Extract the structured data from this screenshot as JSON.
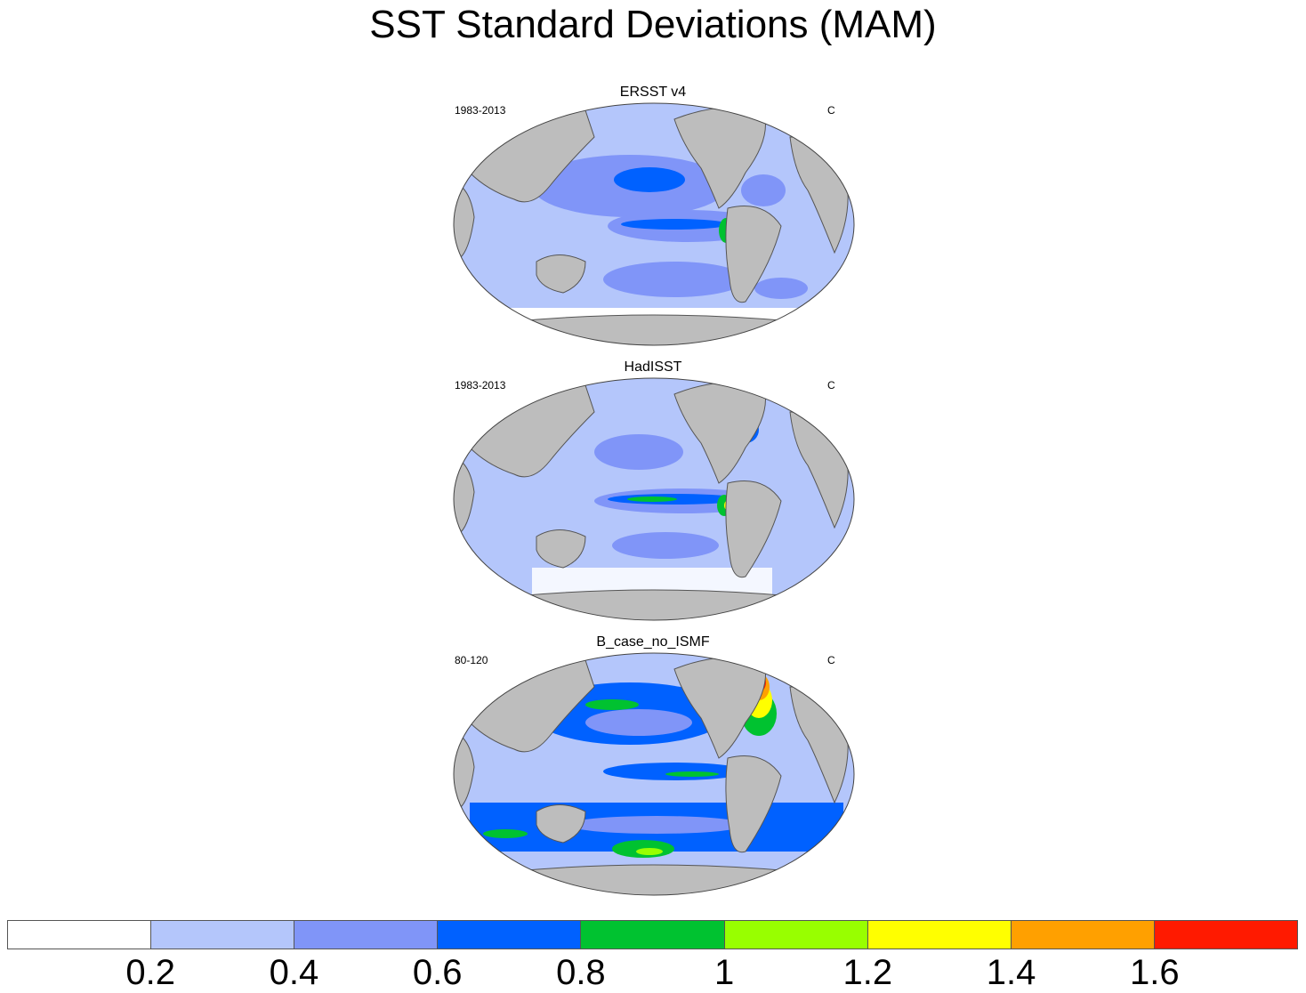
{
  "title": "SST Standard Deviations (MAM)",
  "panels": [
    {
      "name": "ERSST v4",
      "period": "1983-2013",
      "units": "C"
    },
    {
      "name": "HadISST",
      "period": "1983-2013",
      "units": "C"
    },
    {
      "name": "B_case_no_ISMF",
      "period": "80-120",
      "units": "C"
    }
  ],
  "colorbar": {
    "colors": [
      "#ffffff",
      "#b4c6fb",
      "#8095f8",
      "#0061ff",
      "#00c230",
      "#98ff00",
      "#ffff00",
      "#ffa000",
      "#ff1a00"
    ],
    "labels": [
      "0.2",
      "0.4",
      "0.6",
      "0.8",
      "1",
      "1.2",
      "1.4",
      "1.6"
    ]
  },
  "colors": {
    "land": "#bdbdbd",
    "ocean_low": "#b4c6fb",
    "ocean_mid": "#8095f8",
    "ocean_high": "#0061ff"
  }
}
